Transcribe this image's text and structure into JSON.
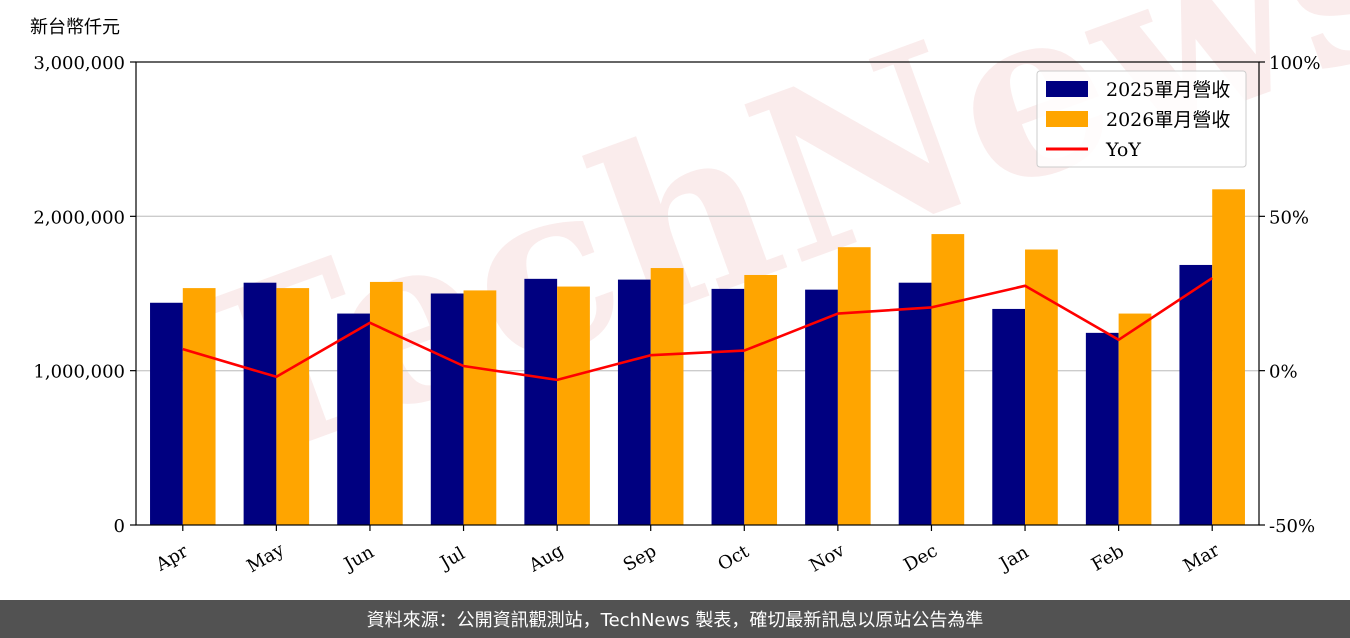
{
  "unit_label": "新台幣仟元",
  "footer": {
    "source": "資料來源：公開資訊觀測站，TechNews 製表，確切最新訊息以原站公告為準"
  },
  "watermark": "TechNews",
  "colors": {
    "bar2025": "#000080",
    "bar2026": "#ffa500",
    "yoy": "#ff0000",
    "grid": "#cccccc"
  },
  "chart_data": {
    "type": "bar",
    "categories": [
      "Apr",
      "May",
      "Jun",
      "Jul",
      "Aug",
      "Sep",
      "Oct",
      "Nov",
      "Dec",
      "Jan",
      "Feb",
      "Mar"
    ],
    "series": [
      {
        "name": "2025單月營收",
        "values": [
          1440000,
          1570000,
          1370000,
          1500000,
          1595000,
          1590000,
          1530000,
          1525000,
          1570000,
          1400000,
          1245000,
          1685000
        ]
      },
      {
        "name": "2026單月營收",
        "values": [
          1535000,
          1535000,
          1575000,
          1520000,
          1545000,
          1665000,
          1620000,
          1800000,
          1885000,
          1785000,
          1370000,
          2175000
        ]
      },
      {
        "name": "YoY",
        "type": "line",
        "axis": "right",
        "values": [
          7,
          -2,
          15.5,
          1.5,
          -3,
          5,
          6.5,
          18.5,
          20.5,
          27.5,
          10,
          30
        ]
      }
    ],
    "y_left": {
      "ylim": [
        0,
        3000000
      ],
      "ticks": [
        0,
        1000000,
        2000000,
        3000000
      ],
      "tick_labels": [
        "0",
        "1,000,000",
        "2,000,000",
        "3,000,000"
      ]
    },
    "y_right": {
      "ylim": [
        -50,
        100
      ],
      "ticks": [
        -50,
        0,
        50,
        100
      ],
      "tick_labels": [
        "-50%",
        "0%",
        "50%",
        "100%"
      ]
    },
    "grid": true,
    "legend": "top-right"
  }
}
